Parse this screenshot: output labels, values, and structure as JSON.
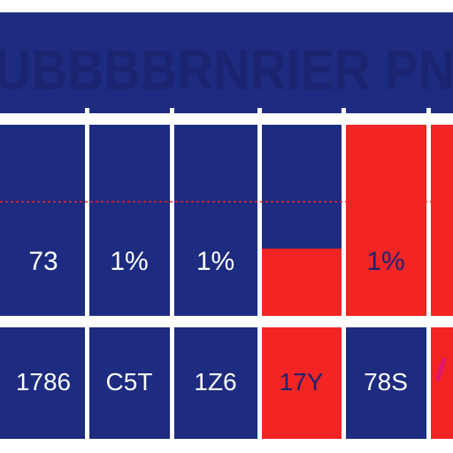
{
  "chart_data": {
    "type": "table",
    "title": "UBBBBRNRIER PN",
    "rows": [
      [
        "73",
        "1%",
        "1%",
        "",
        "1%",
        ""
      ],
      [
        "1786",
        "C5T",
        "1Z6",
        "17Y",
        "78S",
        ""
      ]
    ],
    "row1_red_fill": [
      0,
      0,
      0,
      0.35,
      1,
      1
    ],
    "row2_cell_color": [
      "navy",
      "navy",
      "navy",
      "red",
      "navy",
      "red"
    ],
    "grid": true,
    "colors": {
      "navy": "#1d2b80",
      "red": "#f22424",
      "white": "#ffffff",
      "title_text": "#1b2470",
      "value_text": "#ffffff",
      "value_text_on_red": "#1b2470",
      "accent_magenta": "#e0186a"
    }
  }
}
